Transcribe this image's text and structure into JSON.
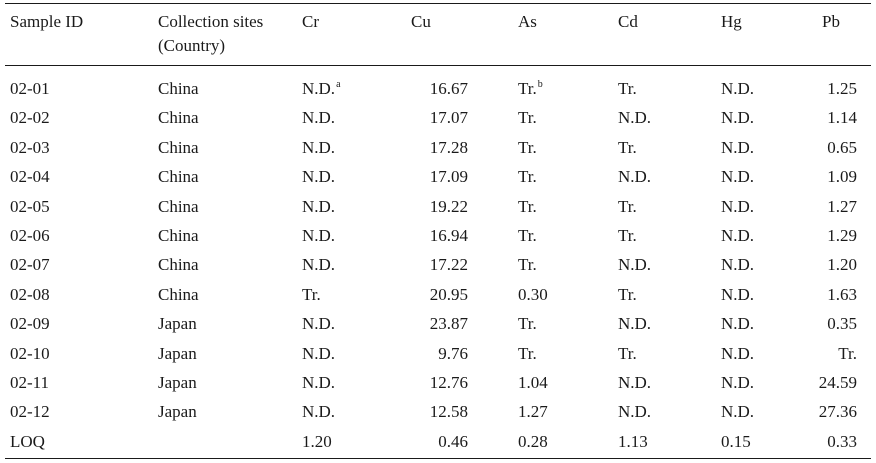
{
  "table": {
    "headers": {
      "sample_id": "Sample ID",
      "site_line1": "Collection sites",
      "site_line2": "(Country)",
      "cr": "Cr",
      "cu": "Cu",
      "as": "As",
      "cd": "Cd",
      "hg": "Hg",
      "pb": "Pb"
    },
    "rows": [
      {
        "id": "02-01",
        "site": "China",
        "cr": "N.D.",
        "cr_note": "a",
        "cu": "16.67",
        "as": "Tr.",
        "as_note": "b",
        "cd": "Tr.",
        "hg": "N.D.",
        "pb": "1.25"
      },
      {
        "id": "02-02",
        "site": "China",
        "cr": "N.D.",
        "cu": "17.07",
        "as": "Tr.",
        "cd": "N.D.",
        "hg": "N.D.",
        "pb": "1.14"
      },
      {
        "id": "02-03",
        "site": "China",
        "cr": "N.D.",
        "cu": "17.28",
        "as": "Tr.",
        "cd": "Tr.",
        "hg": "N.D.",
        "pb": "0.65"
      },
      {
        "id": "02-04",
        "site": "China",
        "cr": "N.D.",
        "cu": "17.09",
        "as": "Tr.",
        "cd": "N.D.",
        "hg": "N.D.",
        "pb": "1.09"
      },
      {
        "id": "02-05",
        "site": "China",
        "cr": "N.D.",
        "cu": "19.22",
        "as": "Tr.",
        "cd": "Tr.",
        "hg": "N.D.",
        "pb": "1.27"
      },
      {
        "id": "02-06",
        "site": "China",
        "cr": "N.D.",
        "cu": "16.94",
        "as": "Tr.",
        "cd": "Tr.",
        "hg": "N.D.",
        "pb": "1.29"
      },
      {
        "id": "02-07",
        "site": "China",
        "cr": "N.D.",
        "cu": "17.22",
        "as": "Tr.",
        "cd": "N.D.",
        "hg": "N.D.",
        "pb": "1.20"
      },
      {
        "id": "02-08",
        "site": "China",
        "cr": "Tr.",
        "cu": "20.95",
        "as": "0.30",
        "cd": "Tr.",
        "hg": "N.D.",
        "pb": "1.63"
      },
      {
        "id": "02-09",
        "site": "Japan",
        "cr": "N.D.",
        "cu": "23.87",
        "as": "Tr.",
        "cd": "N.D.",
        "hg": "N.D.",
        "pb": "0.35"
      },
      {
        "id": "02-10",
        "site": "Japan",
        "cr": "N.D.",
        "cu": "9.76",
        "as": "Tr.",
        "cd": "Tr.",
        "hg": "N.D.",
        "pb": "Tr."
      },
      {
        "id": "02-11",
        "site": "Japan",
        "cr": "N.D.",
        "cu": "12.76",
        "as": "1.04",
        "cd": "N.D.",
        "hg": "N.D.",
        "pb": "24.59"
      },
      {
        "id": "02-12",
        "site": "Japan",
        "cr": "N.D.",
        "cu": "12.58",
        "as": "1.27",
        "cd": "N.D.",
        "hg": "N.D.",
        "pb": "27.36"
      }
    ],
    "loq": {
      "id": "LOQ",
      "site": "",
      "cr": "1.20",
      "cu": "0.46",
      "as": "0.28",
      "cd": "1.13",
      "hg": "0.15",
      "pb": "0.33"
    }
  }
}
